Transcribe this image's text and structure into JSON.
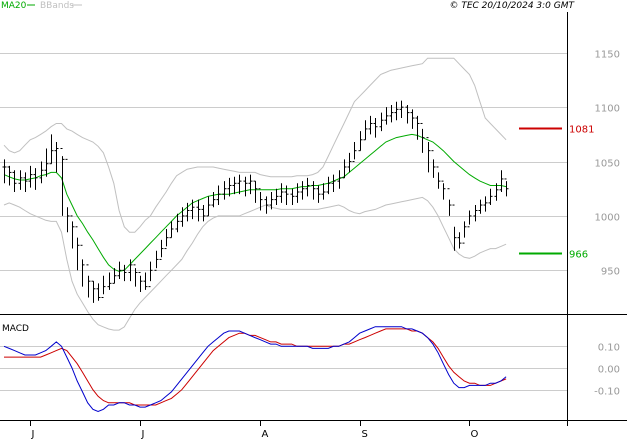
{
  "header": {
    "ma_label": "MA20",
    "bb_label": "BBands",
    "copyright": "© TEC 20/10/2024 3:0 GMT"
  },
  "colors": {
    "price": "#000000",
    "ma": "#00aa00",
    "bbands": "#c0c0c0",
    "grid": "#cccccc",
    "resistance": "#cc0000",
    "support": "#00aa00",
    "macd": "#0000cc",
    "signal": "#cc0000",
    "axis_text": "#999999"
  },
  "chart_data": [
    {
      "type": "ohlc",
      "title": "",
      "y_ticks": [
        950,
        1000,
        1050,
        1100,
        1150
      ],
      "ylim": [
        913.5,
        1187.5
      ],
      "grid": true,
      "x_ticks": [
        {
          "label": "J",
          "index": 5
        },
        {
          "label": "J",
          "index": 26
        },
        {
          "label": "A",
          "index": 49
        },
        {
          "label": "S",
          "index": 68
        },
        {
          "label": "O",
          "index": 89
        }
      ],
      "close": [
        1045,
        1040,
        1030,
        1035,
        1032,
        1038,
        1035,
        1042,
        1048,
        1060,
        1062,
        1052,
        1000,
        990,
        973,
        955,
        940,
        933,
        925,
        935,
        938,
        945,
        950,
        948,
        955,
        948,
        940,
        935,
        950,
        960,
        970,
        980,
        988,
        995,
        1000,
        1005,
        1008,
        1006,
        1000,
        1010,
        1015,
        1020,
        1025,
        1028,
        1030,
        1032,
        1030,
        1032,
        1025,
        1015,
        1010,
        1015,
        1018,
        1022,
        1020,
        1018,
        1022,
        1025,
        1028,
        1025,
        1020,
        1022,
        1030,
        1032,
        1035,
        1045,
        1050,
        1060,
        1070,
        1080,
        1085,
        1082,
        1088,
        1092,
        1095,
        1098,
        1100,
        1095,
        1090,
        1085,
        1072,
        1060,
        1045,
        1032,
        1025,
        1010,
        980,
        975,
        990,
        1000,
        1005,
        1010,
        1012,
        1018,
        1024,
        1034,
        1025
      ],
      "low": [
        1030,
        1028,
        1022,
        1024,
        1022,
        1026,
        1024,
        1030,
        1036,
        1048,
        1040,
        1000,
        985,
        970,
        950,
        935,
        925,
        920,
        922,
        928,
        932,
        938,
        942,
        940,
        940,
        935,
        930,
        932,
        940,
        952,
        962,
        972,
        980,
        985,
        990,
        995,
        997,
        995,
        995,
        1000,
        1008,
        1010,
        1015,
        1018,
        1020,
        1020,
        1018,
        1020,
        1012,
        1005,
        1002,
        1006,
        1010,
        1012,
        1010,
        1010,
        1012,
        1015,
        1018,
        1015,
        1012,
        1015,
        1020,
        1022,
        1025,
        1035,
        1040,
        1052,
        1060,
        1070,
        1075,
        1072,
        1078,
        1084,
        1086,
        1088,
        1090,
        1085,
        1080,
        1070,
        1058,
        1040,
        1035,
        1025,
        1015,
        1000,
        968,
        970,
        980,
        992,
        995,
        1002,
        1004,
        1010,
        1014,
        1022,
        1018
      ],
      "high": [
        1052,
        1046,
        1042,
        1042,
        1040,
        1046,
        1044,
        1050,
        1062,
        1075,
        1068,
        1055,
        1008,
        995,
        980,
        960,
        945,
        940,
        938,
        945,
        948,
        952,
        958,
        955,
        960,
        952,
        945,
        948,
        958,
        968,
        978,
        988,
        995,
        1002,
        1008,
        1012,
        1015,
        1015,
        1010,
        1018,
        1022,
        1028,
        1032,
        1035,
        1036,
        1038,
        1036,
        1038,
        1032,
        1022,
        1018,
        1022,
        1025,
        1030,
        1028,
        1025,
        1030,
        1032,
        1035,
        1032,
        1028,
        1030,
        1036,
        1038,
        1042,
        1052,
        1058,
        1068,
        1078,
        1088,
        1092,
        1090,
        1095,
        1100,
        1102,
        1105,
        1106,
        1102,
        1098,
        1092,
        1080,
        1068,
        1052,
        1040,
        1030,
        1015,
        990,
        985,
        995,
        1005,
        1010,
        1015,
        1018,
        1025,
        1030,
        1042,
        1032
      ],
      "ma20": {
        "name": "MA20",
        "values": [
          1038,
          1036,
          1034,
          1033,
          1033,
          1034,
          1035,
          1037,
          1038,
          1040,
          1040,
          1035,
          1020,
          1010,
          1000,
          993,
          985,
          978,
          970,
          962,
          955,
          951,
          949,
          950,
          955,
          960,
          965,
          970,
          975,
          980,
          985,
          990,
          995,
          1000,
          1004,
          1008,
          1012,
          1014,
          1016,
          1018,
          1019,
          1020,
          1020,
          1020,
          1021,
          1022,
          1023,
          1024,
          1024,
          1024,
          1024,
          1024,
          1024,
          1025,
          1025,
          1025,
          1026,
          1027,
          1027,
          1028,
          1028,
          1029,
          1030,
          1032,
          1034,
          1036,
          1040,
          1044,
          1048,
          1052,
          1056,
          1060,
          1064,
          1068,
          1070,
          1072,
          1073,
          1074,
          1075,
          1074,
          1072,
          1070,
          1068,
          1064,
          1060,
          1055,
          1050,
          1046,
          1042,
          1038,
          1035,
          1032,
          1030,
          1028,
          1028,
          1028,
          1027
        ]
      },
      "bbands_upper": {
        "name": "BBands",
        "values": [
          1065,
          1060,
          1058,
          1060,
          1065,
          1070,
          1072,
          1075,
          1078,
          1082,
          1085,
          1085,
          1080,
          1078,
          1075,
          1072,
          1070,
          1068,
          1064,
          1058,
          1045,
          1030,
          1005,
          990,
          985,
          985,
          990,
          996,
          1000,
          1008,
          1015,
          1022,
          1030,
          1037,
          1040,
          1043,
          1044,
          1045,
          1045,
          1045,
          1045,
          1044,
          1043,
          1042,
          1041,
          1040,
          1040,
          1040,
          1040,
          1038,
          1037,
          1036,
          1036,
          1036,
          1036,
          1036,
          1037,
          1037,
          1037,
          1038,
          1040,
          1045,
          1055,
          1065,
          1075,
          1085,
          1095,
          1105,
          1110,
          1115,
          1120,
          1125,
          1130,
          1132,
          1134,
          1135,
          1136,
          1137,
          1138,
          1139,
          1140,
          1145,
          1145,
          1145,
          1145,
          1145,
          1145,
          1140,
          1135,
          1130,
          1120,
          1105,
          1090,
          1085,
          1080,
          1075,
          1070
        ]
      },
      "bbands_lower": {
        "name": "BBands",
        "values": [
          1010,
          1012,
          1010,
          1008,
          1005,
          1002,
          1000,
          998,
          996,
          995,
          995,
          985,
          960,
          940,
          928,
          920,
          912,
          905,
          900,
          898,
          896,
          895,
          895,
          898,
          906,
          914,
          920,
          925,
          930,
          935,
          940,
          945,
          950,
          955,
          960,
          968,
          975,
          983,
          990,
          995,
          998,
          1000,
          1000,
          1000,
          1000,
          1000,
          1002,
          1004,
          1006,
          1008,
          1010,
          1008,
          1007,
          1006,
          1006,
          1006,
          1006,
          1006,
          1006,
          1006,
          1006,
          1007,
          1008,
          1009,
          1010,
          1008,
          1005,
          1003,
          1002,
          1004,
          1005,
          1006,
          1008,
          1010,
          1011,
          1012,
          1013,
          1014,
          1015,
          1016,
          1017,
          1014,
          1008,
          1000,
          990,
          980,
          970,
          965,
          962,
          961,
          963,
          966,
          968,
          970,
          970,
          972,
          974
        ]
      },
      "levels": [
        {
          "name": "resistance",
          "value": 1081,
          "label": "1081"
        },
        {
          "name": "support",
          "value": 966,
          "label": "966"
        }
      ]
    },
    {
      "type": "line",
      "title": "MACD",
      "y_ticks": [
        0.1,
        0.0,
        -0.1
      ],
      "y_tick_labels": [
        "0.10",
        "0.00",
        "-0.10"
      ],
      "ylim": [
        -0.23,
        0.23
      ],
      "series": [
        {
          "name": "MACD",
          "values": [
            0.1,
            0.09,
            0.08,
            0.07,
            0.06,
            0.06,
            0.06,
            0.07,
            0.08,
            0.1,
            0.12,
            0.1,
            0.05,
            0.0,
            -0.06,
            -0.11,
            -0.16,
            -0.19,
            -0.2,
            -0.19,
            -0.17,
            -0.17,
            -0.16,
            -0.16,
            -0.17,
            -0.17,
            -0.18,
            -0.18,
            -0.17,
            -0.16,
            -0.15,
            -0.13,
            -0.11,
            -0.08,
            -0.05,
            -0.02,
            0.01,
            0.04,
            0.07,
            0.1,
            0.12,
            0.14,
            0.16,
            0.17,
            0.17,
            0.17,
            0.16,
            0.15,
            0.14,
            0.13,
            0.12,
            0.11,
            0.11,
            0.1,
            0.1,
            0.1,
            0.1,
            0.1,
            0.1,
            0.09,
            0.09,
            0.09,
            0.09,
            0.1,
            0.1,
            0.11,
            0.12,
            0.14,
            0.16,
            0.17,
            0.18,
            0.19,
            0.19,
            0.19,
            0.19,
            0.19,
            0.19,
            0.18,
            0.18,
            0.17,
            0.16,
            0.14,
            0.11,
            0.07,
            0.02,
            -0.03,
            -0.07,
            -0.09,
            -0.09,
            -0.08,
            -0.08,
            -0.08,
            -0.08,
            -0.07,
            -0.07,
            -0.06,
            -0.04
          ]
        },
        {
          "name": "Signal",
          "values": [
            0.05,
            0.05,
            0.05,
            0.05,
            0.05,
            0.05,
            0.05,
            0.05,
            0.06,
            0.07,
            0.08,
            0.09,
            0.08,
            0.05,
            0.02,
            -0.02,
            -0.06,
            -0.1,
            -0.13,
            -0.15,
            -0.16,
            -0.16,
            -0.16,
            -0.16,
            -0.16,
            -0.17,
            -0.17,
            -0.17,
            -0.17,
            -0.17,
            -0.16,
            -0.15,
            -0.14,
            -0.12,
            -0.1,
            -0.07,
            -0.04,
            -0.01,
            0.02,
            0.05,
            0.08,
            0.1,
            0.12,
            0.14,
            0.15,
            0.16,
            0.16,
            0.15,
            0.15,
            0.14,
            0.13,
            0.12,
            0.12,
            0.11,
            0.11,
            0.11,
            0.1,
            0.1,
            0.1,
            0.1,
            0.1,
            0.1,
            0.1,
            0.1,
            0.1,
            0.11,
            0.11,
            0.12,
            0.13,
            0.14,
            0.15,
            0.16,
            0.17,
            0.18,
            0.18,
            0.18,
            0.18,
            0.18,
            0.17,
            0.17,
            0.16,
            0.14,
            0.12,
            0.09,
            0.05,
            0.01,
            -0.02,
            -0.04,
            -0.06,
            -0.07,
            -0.07,
            -0.08,
            -0.08,
            -0.08,
            -0.07,
            -0.06,
            -0.05
          ]
        }
      ]
    }
  ]
}
